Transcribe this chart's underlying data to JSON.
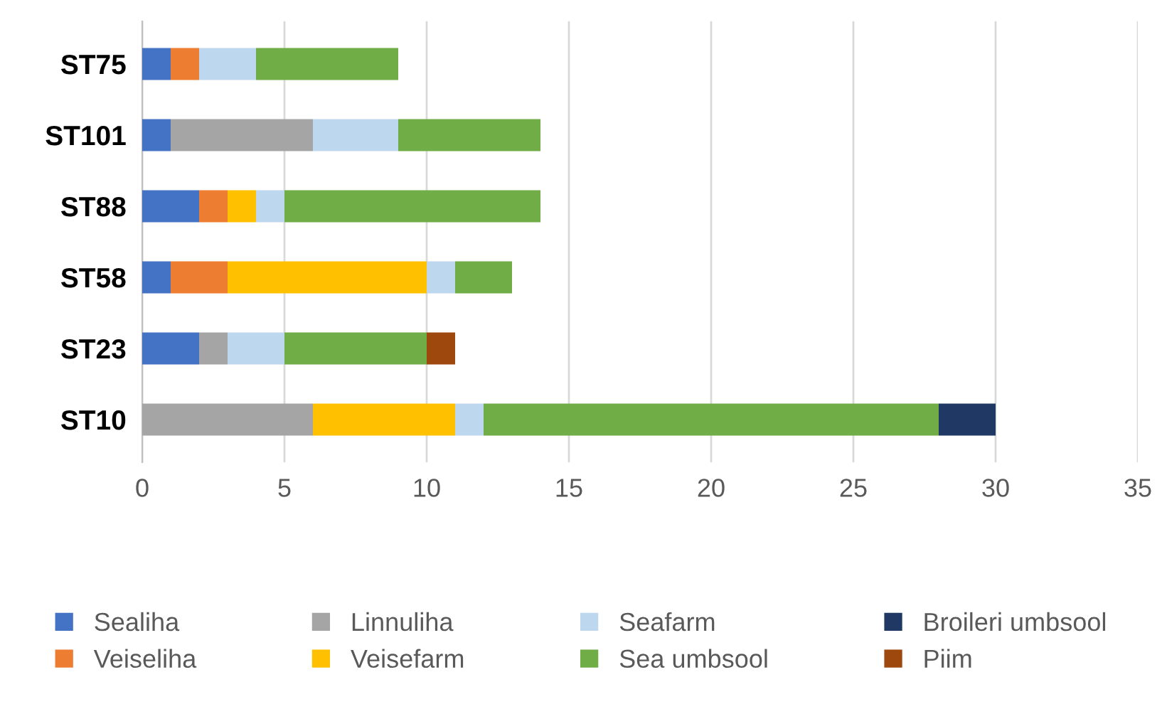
{
  "chart_data": {
    "type": "bar",
    "orientation": "horizontal",
    "stacked": true,
    "categories": [
      "ST75",
      "ST101",
      "ST88",
      "ST58",
      "ST23",
      "ST10"
    ],
    "xlim": [
      0,
      35
    ],
    "xticks": [
      0,
      5,
      10,
      15,
      20,
      25,
      30,
      35
    ],
    "grid": "x",
    "legend": "bottom",
    "series": [
      {
        "name": "Sealiha",
        "color": "#4472c4",
        "values": [
          1,
          1,
          2,
          1,
          2,
          null
        ]
      },
      {
        "name": "Veiseliha",
        "color": "#ed7d31",
        "values": [
          1,
          null,
          1,
          2,
          null,
          null
        ]
      },
      {
        "name": "Linnuliha",
        "color": "#a5a5a5",
        "values": [
          null,
          5,
          null,
          null,
          1,
          6
        ]
      },
      {
        "name": "Veisefarm",
        "color": "#ffc000",
        "values": [
          null,
          null,
          1,
          7,
          null,
          5
        ]
      },
      {
        "name": "Seafarm",
        "color": "#bdd7ee",
        "values": [
          2,
          3,
          1,
          1,
          2,
          1
        ]
      },
      {
        "name": "Sea umbsool",
        "color": "#70ad47",
        "values": [
          5,
          5,
          9,
          2,
          5,
          16
        ]
      },
      {
        "name": "Broileri umbsool",
        "color": "#203864",
        "values": [
          null,
          null,
          null,
          null,
          null,
          2
        ]
      },
      {
        "name": "Piim",
        "color": "#9e480e",
        "values": [
          null,
          null,
          null,
          null,
          1,
          null
        ]
      }
    ]
  }
}
